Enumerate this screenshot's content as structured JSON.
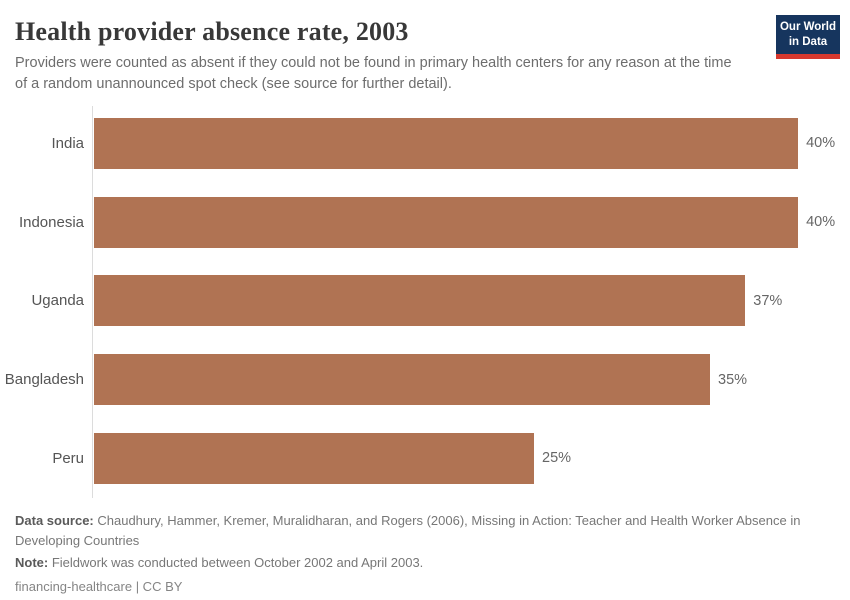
{
  "header": {
    "title": "Health provider absence rate, 2003",
    "subtitle": "Providers were counted as absent if they could not be found in primary health centers for any reason at the time of a random unannounced spot check (see source for further detail).",
    "logo": {
      "line1": "Our World",
      "line2": "in Data",
      "background_color": "#16355e",
      "accent_color": "#d7382e"
    }
  },
  "chart_data": {
    "type": "bar",
    "orientation": "horizontal",
    "title": "Health provider absence rate, 2003",
    "categories": [
      "India",
      "Indonesia",
      "Uganda",
      "Bangladesh",
      "Peru"
    ],
    "values": [
      40,
      40,
      37,
      35,
      25
    ],
    "value_labels": [
      "40%",
      "40%",
      "37%",
      "35%",
      "25%"
    ],
    "unit": "%",
    "xlim": [
      0,
      40
    ],
    "bar_color": "#b07353",
    "grid": false,
    "legend": "none"
  },
  "footer": {
    "data_source_label": "Data source:",
    "data_source_text": " Chaudhury, Hammer, Kremer, Muralidharan, and Rogers (2006), Missing in Action: Teacher and Health Worker Absence in Developing Countries",
    "note_label": "Note:",
    "note_text": " Fieldwork was conducted between October 2002 and April 2003.",
    "license_text": "financing-healthcare | CC BY"
  }
}
